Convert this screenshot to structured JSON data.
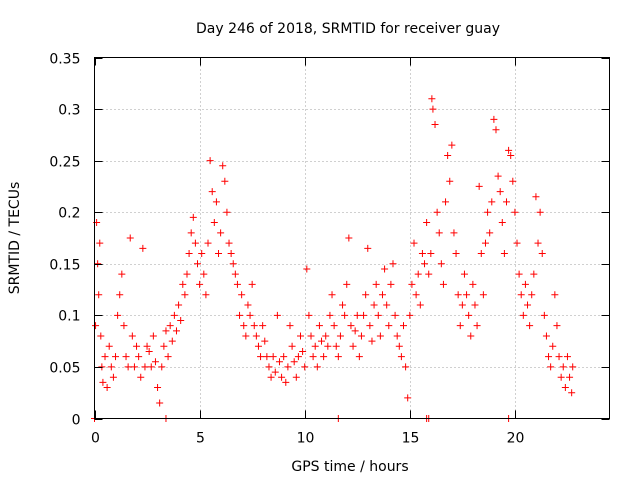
{
  "chart_data": {
    "type": "scatter",
    "title": "Day 246 of 2018, SRMTID for receiver guay",
    "xlabel": "GPS time / hours",
    "ylabel": "SRMTID / TECUs",
    "xlim": [
      0,
      24.5
    ],
    "ylim": [
      0,
      0.35
    ],
    "xticks": [
      0,
      5,
      10,
      15,
      20
    ],
    "xtick_labels": [
      "0",
      "5",
      "10",
      "15",
      "20"
    ],
    "yticks": [
      0,
      0.05,
      0.1,
      0.15,
      0.2,
      0.25,
      0.3,
      0.35
    ],
    "ytick_labels": [
      "0",
      "0.05",
      "0.1",
      "0.15",
      "0.2",
      "0.25",
      "0.3",
      "0.35"
    ],
    "grid": true,
    "marker": "plus",
    "color": "#ff0000",
    "series": [
      {
        "name": "SRMTID",
        "points": [
          [
            0.05,
            0.09
          ],
          [
            0.1,
            0.19
          ],
          [
            0.15,
            0.15
          ],
          [
            0.2,
            0.12
          ],
          [
            0.25,
            0.17
          ],
          [
            0.3,
            0.08
          ],
          [
            0.35,
            0.05
          ],
          [
            0.4,
            0.035
          ],
          [
            0.5,
            0.06
          ],
          [
            0.6,
            0.03
          ],
          [
            0.7,
            0.07
          ],
          [
            0.8,
            0.05
          ],
          [
            0.9,
            0.04
          ],
          [
            1.0,
            0.06
          ],
          [
            1.1,
            0.1
          ],
          [
            1.2,
            0.12
          ],
          [
            1.3,
            0.14
          ],
          [
            1.4,
            0.09
          ],
          [
            1.5,
            0.06
          ],
          [
            1.6,
            0.05
          ],
          [
            1.7,
            0.175
          ],
          [
            1.8,
            0.08
          ],
          [
            1.9,
            0.05
          ],
          [
            2.0,
            0.07
          ],
          [
            2.1,
            0.06
          ],
          [
            2.2,
            0.04
          ],
          [
            2.3,
            0.165
          ],
          [
            2.4,
            0.05
          ],
          [
            2.5,
            0.07
          ],
          [
            2.6,
            0.065
          ],
          [
            2.7,
            0.05
          ],
          [
            2.8,
            0.08
          ],
          [
            2.9,
            0.055
          ],
          [
            3.0,
            0.03
          ],
          [
            3.1,
            0.015
          ],
          [
            3.2,
            0.05
          ],
          [
            3.3,
            0.07
          ],
          [
            3.4,
            0.085
          ],
          [
            3.5,
            0.06
          ],
          [
            3.6,
            0.09
          ],
          [
            3.7,
            0.075
          ],
          [
            3.8,
            0.1
          ],
          [
            3.9,
            0.085
          ],
          [
            4.0,
            0.11
          ],
          [
            4.1,
            0.095
          ],
          [
            4.2,
            0.13
          ],
          [
            4.3,
            0.12
          ],
          [
            4.4,
            0.14
          ],
          [
            4.5,
            0.16
          ],
          [
            4.6,
            0.18
          ],
          [
            4.7,
            0.195
          ],
          [
            4.8,
            0.17
          ],
          [
            4.9,
            0.15
          ],
          [
            5.0,
            0.13
          ],
          [
            5.1,
            0.16
          ],
          [
            5.2,
            0.14
          ],
          [
            5.3,
            0.12
          ],
          [
            5.4,
            0.17
          ],
          [
            5.5,
            0.25
          ],
          [
            5.6,
            0.22
          ],
          [
            5.7,
            0.19
          ],
          [
            5.8,
            0.21
          ],
          [
            5.9,
            0.16
          ],
          [
            6.0,
            0.18
          ],
          [
            6.1,
            0.245
          ],
          [
            6.2,
            0.23
          ],
          [
            6.3,
            0.2
          ],
          [
            6.4,
            0.17
          ],
          [
            6.5,
            0.16
          ],
          [
            6.6,
            0.15
          ],
          [
            6.7,
            0.14
          ],
          [
            6.8,
            0.13
          ],
          [
            6.9,
            0.1
          ],
          [
            7.0,
            0.12
          ],
          [
            7.1,
            0.09
          ],
          [
            7.2,
            0.08
          ],
          [
            7.3,
            0.11
          ],
          [
            7.4,
            0.1
          ],
          [
            7.5,
            0.13
          ],
          [
            7.6,
            0.09
          ],
          [
            7.7,
            0.08
          ],
          [
            7.8,
            0.07
          ],
          [
            7.9,
            0.06
          ],
          [
            8.0,
            0.09
          ],
          [
            8.1,
            0.075
          ],
          [
            8.2,
            0.06
          ],
          [
            8.3,
            0.05
          ],
          [
            8.4,
            0.04
          ],
          [
            8.5,
            0.06
          ],
          [
            8.6,
            0.045
          ],
          [
            8.7,
            0.1
          ],
          [
            8.8,
            0.055
          ],
          [
            8.9,
            0.04
          ],
          [
            9.0,
            0.06
          ],
          [
            9.1,
            0.035
          ],
          [
            9.2,
            0.05
          ],
          [
            9.3,
            0.09
          ],
          [
            9.4,
            0.07
          ],
          [
            9.5,
            0.055
          ],
          [
            9.6,
            0.04
          ],
          [
            9.7,
            0.06
          ],
          [
            9.8,
            0.08
          ],
          [
            9.9,
            0.065
          ],
          [
            10.0,
            0.05
          ],
          [
            10.1,
            0.145
          ],
          [
            10.2,
            0.1
          ],
          [
            10.3,
            0.08
          ],
          [
            10.4,
            0.06
          ],
          [
            10.5,
            0.07
          ],
          [
            10.6,
            0.05
          ],
          [
            10.7,
            0.09
          ],
          [
            10.8,
            0.075
          ],
          [
            10.9,
            0.06
          ],
          [
            11.0,
            0.08
          ],
          [
            11.1,
            0.07
          ],
          [
            11.2,
            0.1
          ],
          [
            11.3,
            0.12
          ],
          [
            11.4,
            0.09
          ],
          [
            11.5,
            0.07
          ],
          [
            11.6,
            0.06
          ],
          [
            11.7,
            0.08
          ],
          [
            11.8,
            0.11
          ],
          [
            11.9,
            0.1
          ],
          [
            12.0,
            0.13
          ],
          [
            12.1,
            0.175
          ],
          [
            12.2,
            0.09
          ],
          [
            12.3,
            0.07
          ],
          [
            12.4,
            0.085
          ],
          [
            12.5,
            0.1
          ],
          [
            12.6,
            0.06
          ],
          [
            12.7,
            0.08
          ],
          [
            12.8,
            0.1
          ],
          [
            12.9,
            0.12
          ],
          [
            13.0,
            0.165
          ],
          [
            13.1,
            0.09
          ],
          [
            13.2,
            0.075
          ],
          [
            13.3,
            0.11
          ],
          [
            13.4,
            0.13
          ],
          [
            13.5,
            0.1
          ],
          [
            13.6,
            0.08
          ],
          [
            13.7,
            0.12
          ],
          [
            13.8,
            0.145
          ],
          [
            13.9,
            0.11
          ],
          [
            14.0,
            0.09
          ],
          [
            14.1,
            0.13
          ],
          [
            14.2,
            0.15
          ],
          [
            14.3,
            0.1
          ],
          [
            14.4,
            0.08
          ],
          [
            14.5,
            0.07
          ],
          [
            14.6,
            0.06
          ],
          [
            14.7,
            0.09
          ],
          [
            14.8,
            0.05
          ],
          [
            14.9,
            0.02
          ],
          [
            15.0,
            0.1
          ],
          [
            15.1,
            0.13
          ],
          [
            15.2,
            0.17
          ],
          [
            15.3,
            0.12
          ],
          [
            15.4,
            0.14
          ],
          [
            15.5,
            0.11
          ],
          [
            15.6,
            0.16
          ],
          [
            15.7,
            0.15
          ],
          [
            15.8,
            0.19
          ],
          [
            15.9,
            0.14
          ],
          [
            16.0,
            0.16
          ],
          [
            16.05,
            0.31
          ],
          [
            16.1,
            0.3
          ],
          [
            16.2,
            0.285
          ],
          [
            16.3,
            0.2
          ],
          [
            16.4,
            0.18
          ],
          [
            16.5,
            0.15
          ],
          [
            16.6,
            0.13
          ],
          [
            16.7,
            0.21
          ],
          [
            16.8,
            0.255
          ],
          [
            16.9,
            0.23
          ],
          [
            17.0,
            0.265
          ],
          [
            17.1,
            0.18
          ],
          [
            17.2,
            0.16
          ],
          [
            17.3,
            0.12
          ],
          [
            17.4,
            0.09
          ],
          [
            17.5,
            0.11
          ],
          [
            17.6,
            0.14
          ],
          [
            17.7,
            0.12
          ],
          [
            17.8,
            0.1
          ],
          [
            17.9,
            0.08
          ],
          [
            18.0,
            0.13
          ],
          [
            18.1,
            0.11
          ],
          [
            18.2,
            0.09
          ],
          [
            18.3,
            0.225
          ],
          [
            18.4,
            0.16
          ],
          [
            18.5,
            0.12
          ],
          [
            18.6,
            0.17
          ],
          [
            18.7,
            0.2
          ],
          [
            18.8,
            0.18
          ],
          [
            18.9,
            0.21
          ],
          [
            19.0,
            0.29
          ],
          [
            19.1,
            0.28
          ],
          [
            19.2,
            0.235
          ],
          [
            19.3,
            0.22
          ],
          [
            19.4,
            0.19
          ],
          [
            19.5,
            0.16
          ],
          [
            19.6,
            0.21
          ],
          [
            19.7,
            0.26
          ],
          [
            19.8,
            0.255
          ],
          [
            19.9,
            0.23
          ],
          [
            20.0,
            0.2
          ],
          [
            20.1,
            0.17
          ],
          [
            20.2,
            0.14
          ],
          [
            20.3,
            0.12
          ],
          [
            20.4,
            0.1
          ],
          [
            20.5,
            0.13
          ],
          [
            20.6,
            0.11
          ],
          [
            20.7,
            0.09
          ],
          [
            20.8,
            0.12
          ],
          [
            20.9,
            0.14
          ],
          [
            21.0,
            0.215
          ],
          [
            21.1,
            0.17
          ],
          [
            21.2,
            0.2
          ],
          [
            21.3,
            0.16
          ],
          [
            21.4,
            0.1
          ],
          [
            21.5,
            0.08
          ],
          [
            21.6,
            0.06
          ],
          [
            21.7,
            0.05
          ],
          [
            21.8,
            0.07
          ],
          [
            21.9,
            0.12
          ],
          [
            22.0,
            0.09
          ],
          [
            22.1,
            0.06
          ],
          [
            22.2,
            0.04
          ],
          [
            22.3,
            0.05
          ],
          [
            22.4,
            0.03
          ],
          [
            22.5,
            0.06
          ],
          [
            22.6,
            0.04
          ],
          [
            22.7,
            0.025
          ],
          [
            22.75,
            0.05
          ]
        ]
      }
    ],
    "zero_points": [
      0.0,
      3.4,
      11.6,
      15.8,
      15.9,
      19.7
    ]
  }
}
